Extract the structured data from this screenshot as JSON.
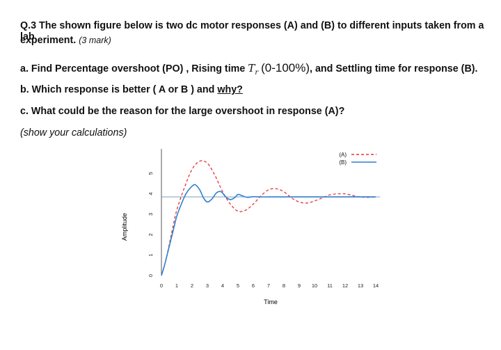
{
  "question": {
    "line1": "Q.3 The shown figure below is two dc motor responses (A) and (B) to different inputs taken from a lab",
    "line2": "experiment.",
    "marks": "(3 mark)",
    "a_prefix": "a. Find Percentage overshoot (PO) , Rising time",
    "a_symbol": "Tr",
    "a_range": "(0-100%)",
    "a_suffix": ", and Settling time for response (B).",
    "b_prefix": "b. Which response is better ( A or B ) and",
    "b_link": "why?",
    "c_text": "c. What could be the reason for the large overshoot in response (A)?",
    "note": "(show your calculations)"
  },
  "chart_data": {
    "type": "line",
    "xlabel": "Time",
    "ylabel": "Amplitude",
    "xlim": [
      0,
      14
    ],
    "ylim": [
      0,
      6.2
    ],
    "xticks": [
      0,
      1,
      2,
      3,
      4,
      5,
      6,
      7,
      8,
      9,
      10,
      11,
      12,
      13,
      14
    ],
    "yticks": [
      0,
      1,
      2,
      3,
      4,
      5
    ],
    "legend_position": "top-right",
    "series": [
      {
        "name": "(A)",
        "style": "dashed",
        "color": "#e8333a",
        "x": [
          0,
          0.3,
          0.7,
          1,
          1.5,
          2,
          2.5,
          3,
          3.5,
          4,
          4.5,
          5,
          5.5,
          6,
          6.5,
          7,
          7.5,
          8,
          8.5,
          9,
          9.5,
          10,
          10.5,
          11,
          11.5,
          12,
          12.5,
          13,
          13.5,
          14
        ],
        "y": [
          0,
          0.8,
          2.2,
          3.2,
          4.3,
          5.2,
          5.6,
          5.5,
          4.9,
          4.1,
          3.5,
          3.15,
          3.2,
          3.5,
          3.9,
          4.2,
          4.25,
          4.1,
          3.8,
          3.6,
          3.55,
          3.65,
          3.8,
          3.95,
          4.0,
          4.0,
          3.92,
          3.85,
          3.83,
          3.85
        ]
      },
      {
        "name": "(B)",
        "style": "solid",
        "color": "#2f7fd0",
        "x": [
          0,
          0.2,
          0.5,
          0.8,
          1,
          1.3,
          1.6,
          1.9,
          2.2,
          2.5,
          2.75,
          3,
          3.3,
          3.6,
          3.9,
          4.2,
          4.5,
          4.8,
          5,
          5.3,
          5.6,
          6,
          6.5,
          7,
          8,
          9,
          10,
          11,
          12,
          13,
          14
        ],
        "y": [
          0,
          0.5,
          1.4,
          2.3,
          2.9,
          3.5,
          4.0,
          4.3,
          4.45,
          4.2,
          3.8,
          3.6,
          3.75,
          4.05,
          4.1,
          3.85,
          3.72,
          3.82,
          3.97,
          3.9,
          3.83,
          3.86,
          3.85,
          3.85,
          3.85,
          3.85,
          3.85,
          3.85,
          3.85,
          3.85,
          3.85
        ]
      }
    ],
    "reference_line": {
      "y": 3.85,
      "color": "#7f9fb8"
    },
    "colors": {
      "axis": "#555555",
      "tick_text": "#222222"
    }
  }
}
